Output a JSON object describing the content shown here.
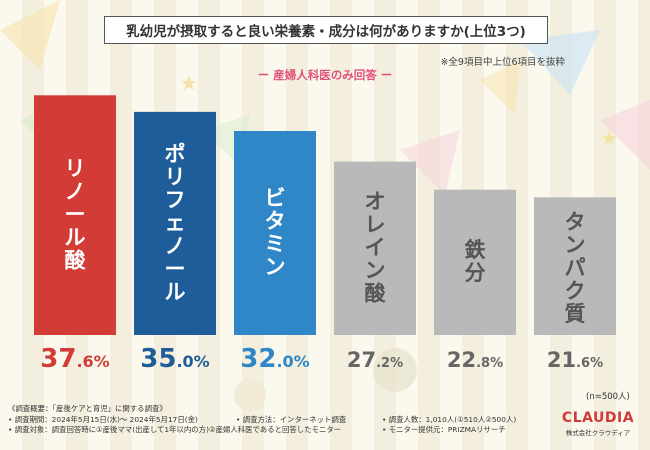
{
  "title": "乳幼児が摂取すると良い栄養素・成分は何がありますか(上位3つ)",
  "note": "※全9項目中上位6項目を抜粋",
  "subtitle": "ー 産婦人科医のみ回答 ー",
  "n_label": "(n=500人)",
  "chart_data": {
    "type": "bar",
    "title": "乳幼児が摂取すると良い栄養素・成分は何がありますか(上位3つ)",
    "subtitle": "産婦人科医のみ回答",
    "categories": [
      "リノール酸",
      "ポリフェノール",
      "ビタミン",
      "オレイン酸",
      "鉄分",
      "タンパク質"
    ],
    "values": [
      37.6,
      35.0,
      32.0,
      27.2,
      22.8,
      21.6
    ],
    "labels": [
      "37.6%",
      "35.0%",
      "32.0%",
      "27.2%",
      "22.8%",
      "21.6%"
    ],
    "colors": [
      "#d33b36",
      "#1e5d99",
      "#2f87c8",
      "#b9b9b9",
      "#b9b9b9",
      "#b9b9b9"
    ],
    "label_colors": [
      "#d33b36",
      "#1e5d99",
      "#2f87c8",
      "#666666",
      "#666666",
      "#666666"
    ],
    "unit": "%",
    "ylim": [
      0,
      40
    ],
    "xlabel": "",
    "ylabel": ""
  },
  "footnotes": {
    "survey_overview": "《調査概要：「産後ケアと育児」に関する調査》",
    "period": "• 調査期間：2024年5月15日(水)～ 2024年5月17日(金)",
    "method": "• 調査方法：インターネット調査",
    "count": "• 調査人数：1,010人(①510人②500人)",
    "target": "• 調査対象：調査回答時に①産後ママ(出産して1年以内の方)②産婦人科医であると回答したモニター",
    "provider": "• モニター提供元：PRIZMAリサーチ"
  },
  "logo": {
    "main": "CLAUDIA",
    "sub": "株式会社クラウディア"
  }
}
